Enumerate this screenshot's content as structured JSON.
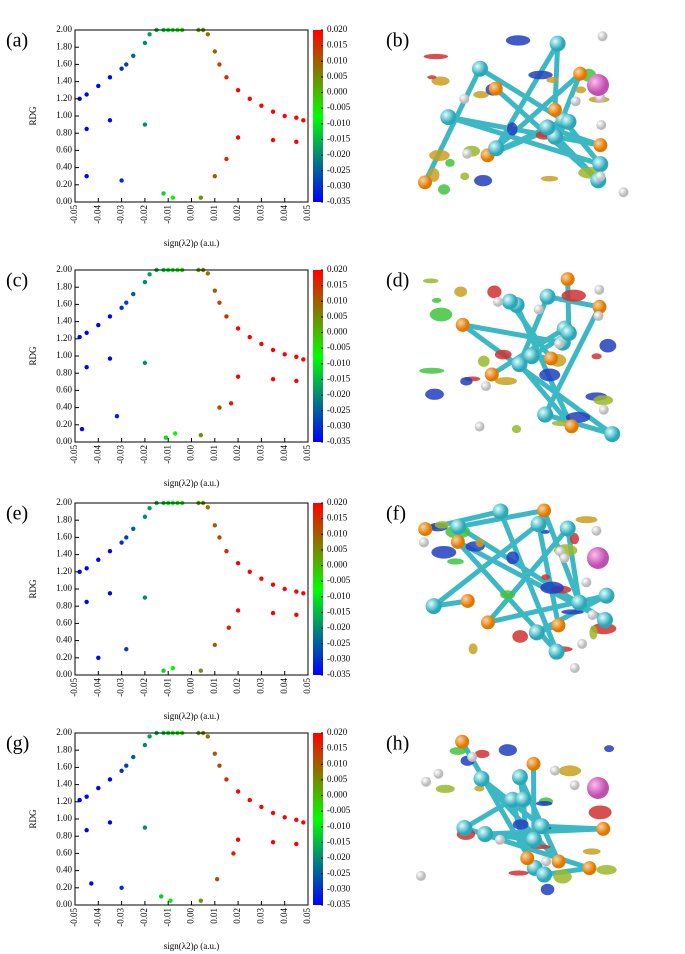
{
  "chart_data": [
    {
      "type": "scatter",
      "label": "(a)",
      "xlabel": "sign(λ2)ρ (a.u.)",
      "ylabel": "RDG",
      "x": [
        -0.048,
        -0.045,
        -0.04,
        -0.035,
        -0.03,
        -0.028,
        -0.025,
        -0.02,
        -0.018,
        -0.015,
        -0.012,
        -0.01,
        -0.008,
        -0.006,
        -0.004,
        0.003,
        0.005,
        0.007,
        0.01,
        0.012,
        0.015,
        0.02,
        0.025,
        0.03,
        0.035,
        0.04,
        0.045,
        0.048,
        -0.045,
        -0.035,
        -0.02,
        0.02,
        0.035,
        0.045,
        -0.045,
        -0.03,
        -0.012,
        -0.008,
        0.004,
        0.01,
        0.015
      ],
      "y": [
        1.2,
        1.25,
        1.35,
        1.45,
        1.55,
        1.6,
        1.7,
        1.85,
        1.95,
        2.0,
        2.0,
        2.0,
        2.0,
        2.0,
        2.0,
        2.0,
        2.0,
        1.95,
        1.75,
        1.6,
        1.45,
        1.3,
        1.2,
        1.12,
        1.05,
        1.0,
        0.98,
        0.95,
        0.85,
        0.95,
        0.9,
        0.75,
        0.72,
        0.7,
        0.3,
        0.25,
        0.1,
        0.05,
        0.05,
        0.3,
        0.5
      ],
      "xlim": [
        -0.05,
        0.05
      ],
      "ylim": [
        0,
        2
      ],
      "xticks": [
        -0.05,
        -0.04,
        -0.03,
        -0.02,
        -0.01,
        {
          "value": 0,
          "label": "0.00"
        },
        0.01,
        0.02,
        0.03,
        0.04,
        0.05
      ],
      "yticks": [
        {
          "value": 0,
          "label": "0.00"
        },
        {
          "value": 0.2,
          "label": "0.20"
        },
        {
          "value": 0.4,
          "label": "0.40"
        },
        {
          "value": 0.6,
          "label": "0.60"
        },
        {
          "value": 0.8,
          "label": "0.80"
        },
        {
          "value": 1,
          "label": "1.00"
        },
        {
          "value": 1.2,
          "label": "1.20"
        },
        {
          "value": 1.4,
          "label": "1.40"
        },
        {
          "value": 1.6,
          "label": "1.60"
        },
        {
          "value": 1.8,
          "label": "1.80"
        },
        {
          "value": 2,
          "label": "2.00"
        }
      ],
      "colorbar": {
        "lim": [
          -0.035,
          0.02
        ],
        "colors": [
          "#0000ff",
          "#00ff00",
          "#ff0000"
        ],
        "ticks": [
          {
            "value": 0.02,
            "label": "0.020"
          },
          {
            "value": 0.015,
            "label": "0.015"
          },
          {
            "value": 0.01,
            "label": "0.010"
          },
          {
            "value": 0.005,
            "label": "0.005"
          },
          {
            "value": 0,
            "label": "0.000"
          },
          {
            "value": -0.005,
            "label": "-0.005"
          },
          {
            "value": -0.01,
            "label": "-0.010"
          },
          {
            "value": -0.015,
            "label": "-0.015"
          },
          {
            "value": -0.02,
            "label": "-0.020"
          },
          {
            "value": -0.025,
            "label": "-0.025"
          },
          {
            "value": -0.03,
            "label": "-0.030"
          },
          {
            "value": -0.035,
            "label": "-0.035"
          }
        ]
      }
    },
    {
      "type": "scatter",
      "label": "(c)",
      "xlabel": "sign(λ2)ρ (a.u.)",
      "ylabel": "RDG",
      "x": [
        -0.048,
        -0.045,
        -0.04,
        -0.035,
        -0.03,
        -0.028,
        -0.025,
        -0.02,
        -0.018,
        -0.015,
        -0.012,
        -0.01,
        -0.008,
        -0.006,
        -0.004,
        0.003,
        0.005,
        0.007,
        0.01,
        0.012,
        0.015,
        0.02,
        0.025,
        0.03,
        0.035,
        0.04,
        0.045,
        0.048,
        -0.045,
        -0.035,
        -0.02,
        0.02,
        0.035,
        0.045,
        -0.047,
        -0.032,
        -0.011,
        -0.007,
        0.004,
        0.012,
        0.017
      ],
      "y": [
        1.22,
        1.27,
        1.36,
        1.46,
        1.56,
        1.62,
        1.72,
        1.86,
        1.95,
        2.0,
        2.0,
        2.0,
        2.0,
        2.0,
        2.0,
        2.0,
        2.0,
        1.96,
        1.76,
        1.62,
        1.46,
        1.32,
        1.22,
        1.14,
        1.07,
        1.02,
        0.99,
        0.96,
        0.87,
        0.97,
        0.92,
        0.76,
        0.73,
        0.71,
        0.15,
        0.3,
        0.05,
        0.1,
        0.08,
        0.4,
        0.45
      ],
      "xlim": [
        -0.05,
        0.05
      ],
      "ylim": [
        0,
        2
      ],
      "xticks": [
        -0.05,
        -0.04,
        -0.03,
        -0.02,
        -0.01,
        {
          "value": 0,
          "label": "0.00"
        },
        0.01,
        0.02,
        0.03,
        0.04,
        0.05
      ],
      "yticks": [
        {
          "value": 0,
          "label": "0.00"
        },
        {
          "value": 0.2,
          "label": "0.20"
        },
        {
          "value": 0.4,
          "label": "0.40"
        },
        {
          "value": 0.6,
          "label": "0.60"
        },
        {
          "value": 0.8,
          "label": "0.80"
        },
        {
          "value": 1,
          "label": "1.00"
        },
        {
          "value": 1.2,
          "label": "1.20"
        },
        {
          "value": 1.4,
          "label": "1.40"
        },
        {
          "value": 1.6,
          "label": "1.60"
        },
        {
          "value": 1.8,
          "label": "1.80"
        },
        {
          "value": 2,
          "label": "2.00"
        }
      ],
      "colorbar": {
        "lim": [
          -0.035,
          0.02
        ],
        "colors": [
          "#0000ff",
          "#00ff00",
          "#ff0000"
        ],
        "ticks": [
          {
            "value": 0.02,
            "label": "0.020"
          },
          {
            "value": 0.015,
            "label": "0.015"
          },
          {
            "value": 0.01,
            "label": "0.010"
          },
          {
            "value": 0.005,
            "label": "0.005"
          },
          {
            "value": 0,
            "label": "0.000"
          },
          {
            "value": -0.005,
            "label": "-0.005"
          },
          {
            "value": -0.01,
            "label": "-0.010"
          },
          {
            "value": -0.015,
            "label": "-0.015"
          },
          {
            "value": -0.02,
            "label": "-0.020"
          },
          {
            "value": -0.025,
            "label": "-0.025"
          },
          {
            "value": -0.03,
            "label": "-0.030"
          },
          {
            "value": -0.035,
            "label": "-0.035"
          }
        ]
      }
    },
    {
      "type": "scatter",
      "label": "(e)",
      "xlabel": "sign(λ2)ρ (a.u.)",
      "ylabel": "RDG",
      "x": [
        -0.048,
        -0.045,
        -0.04,
        -0.035,
        -0.03,
        -0.028,
        -0.025,
        -0.02,
        -0.018,
        -0.015,
        -0.012,
        -0.01,
        -0.008,
        -0.006,
        -0.004,
        0.003,
        0.005,
        0.007,
        0.01,
        0.012,
        0.015,
        0.02,
        0.025,
        0.03,
        0.035,
        0.04,
        0.045,
        0.048,
        -0.045,
        -0.035,
        -0.02,
        0.02,
        0.035,
        0.045,
        -0.04,
        -0.028,
        -0.012,
        -0.008,
        0.004,
        0.01,
        0.016
      ],
      "y": [
        1.2,
        1.24,
        1.34,
        1.44,
        1.54,
        1.6,
        1.7,
        1.84,
        1.94,
        2.0,
        2.0,
        2.0,
        2.0,
        2.0,
        2.0,
        2.0,
        2.0,
        1.95,
        1.74,
        1.6,
        1.44,
        1.3,
        1.2,
        1.12,
        1.05,
        1.0,
        0.97,
        0.95,
        0.85,
        0.95,
        0.9,
        0.75,
        0.72,
        0.7,
        0.2,
        0.3,
        0.05,
        0.08,
        0.05,
        0.35,
        0.55
      ],
      "xlim": [
        -0.05,
        0.05
      ],
      "ylim": [
        0,
        2
      ],
      "xticks": [
        -0.05,
        -0.04,
        -0.03,
        -0.02,
        -0.01,
        {
          "value": 0,
          "label": "0.00"
        },
        0.01,
        0.02,
        0.03,
        0.04,
        0.05
      ],
      "yticks": [
        {
          "value": 0,
          "label": "0.00"
        },
        {
          "value": 0.2,
          "label": "0.20"
        },
        {
          "value": 0.4,
          "label": "0.40"
        },
        {
          "value": 0.6,
          "label": "0.60"
        },
        {
          "value": 0.8,
          "label": "0.80"
        },
        {
          "value": 1,
          "label": "1.00"
        },
        {
          "value": 1.2,
          "label": "1.20"
        },
        {
          "value": 1.4,
          "label": "1.40"
        },
        {
          "value": 1.6,
          "label": "1.60"
        },
        {
          "value": 1.8,
          "label": "1.80"
        },
        {
          "value": 2,
          "label": "2.00"
        }
      ],
      "colorbar": {
        "lim": [
          -0.035,
          0.02
        ],
        "colors": [
          "#0000ff",
          "#00ff00",
          "#ff0000"
        ],
        "ticks": [
          {
            "value": 0.02,
            "label": "0.020"
          },
          {
            "value": 0.015,
            "label": "0.015"
          },
          {
            "value": 0.01,
            "label": "0.010"
          },
          {
            "value": 0.005,
            "label": "0.005"
          },
          {
            "value": 0,
            "label": "0.000"
          },
          {
            "value": -0.005,
            "label": "-0.005"
          },
          {
            "value": -0.01,
            "label": "-0.010"
          },
          {
            "value": -0.015,
            "label": "-0.015"
          },
          {
            "value": -0.02,
            "label": "-0.020"
          },
          {
            "value": -0.025,
            "label": "-0.025"
          },
          {
            "value": -0.03,
            "label": "-0.030"
          },
          {
            "value": -0.035,
            "label": "-0.035"
          }
        ]
      }
    },
    {
      "type": "scatter",
      "label": "(g)",
      "xlabel": "sign(λ2)ρ (a.u.)",
      "ylabel": "RDG",
      "x": [
        -0.048,
        -0.045,
        -0.04,
        -0.035,
        -0.03,
        -0.028,
        -0.025,
        -0.02,
        -0.018,
        -0.015,
        -0.012,
        -0.01,
        -0.008,
        -0.006,
        -0.004,
        0.003,
        0.005,
        0.007,
        0.01,
        0.012,
        0.015,
        0.02,
        0.025,
        0.03,
        0.035,
        0.04,
        0.045,
        0.048,
        -0.045,
        -0.035,
        -0.02,
        0.02,
        0.035,
        0.045,
        -0.043,
        -0.03,
        -0.013,
        -0.009,
        0.004,
        0.011,
        0.018
      ],
      "y": [
        1.22,
        1.26,
        1.36,
        1.46,
        1.56,
        1.62,
        1.72,
        1.86,
        1.96,
        2.0,
        2.0,
        2.0,
        2.0,
        2.0,
        2.0,
        2.0,
        2.0,
        1.96,
        1.76,
        1.62,
        1.46,
        1.32,
        1.22,
        1.14,
        1.07,
        1.02,
        0.99,
        0.96,
        0.87,
        0.96,
        0.9,
        0.76,
        0.73,
        0.71,
        0.25,
        0.2,
        0.1,
        0.05,
        0.05,
        0.3,
        0.6
      ],
      "xlim": [
        -0.05,
        0.05
      ],
      "ylim": [
        0,
        2
      ],
      "xticks": [
        -0.05,
        -0.04,
        -0.03,
        -0.02,
        -0.01,
        {
          "value": 0,
          "label": "0.00"
        },
        0.01,
        0.02,
        0.03,
        0.04,
        0.05
      ],
      "yticks": [
        {
          "value": 0,
          "label": "0.00"
        },
        {
          "value": 0.2,
          "label": "0.20"
        },
        {
          "value": 0.4,
          "label": "0.40"
        },
        {
          "value": 0.6,
          "label": "0.60"
        },
        {
          "value": 0.8,
          "label": "0.80"
        },
        {
          "value": 1,
          "label": "1.00"
        },
        {
          "value": 1.2,
          "label": "1.20"
        },
        {
          "value": 1.4,
          "label": "1.40"
        },
        {
          "value": 1.6,
          "label": "1.60"
        },
        {
          "value": 1.8,
          "label": "1.80"
        },
        {
          "value": 2,
          "label": "2.00"
        }
      ],
      "colorbar": {
        "lim": [
          -0.035,
          0.02
        ],
        "colors": [
          "#0000ff",
          "#00ff00",
          "#ff0000"
        ],
        "ticks": [
          {
            "value": 0.02,
            "label": "0.020"
          },
          {
            "value": 0.015,
            "label": "0.015"
          },
          {
            "value": 0.01,
            "label": "0.010"
          },
          {
            "value": 0.005,
            "label": "0.005"
          },
          {
            "value": 0,
            "label": "0.000"
          },
          {
            "value": -0.005,
            "label": "-0.005"
          },
          {
            "value": -0.01,
            "label": "-0.010"
          },
          {
            "value": -0.015,
            "label": "-0.015"
          },
          {
            "value": -0.02,
            "label": "-0.020"
          },
          {
            "value": -0.025,
            "label": "-0.025"
          },
          {
            "value": -0.03,
            "label": "-0.030"
          },
          {
            "value": -0.035,
            "label": "-0.035"
          }
        ]
      }
    }
  ],
  "images": [
    {
      "label": "(b)"
    },
    {
      "label": "(d)"
    },
    {
      "label": "(f)"
    },
    {
      "label": "(h)"
    }
  ]
}
